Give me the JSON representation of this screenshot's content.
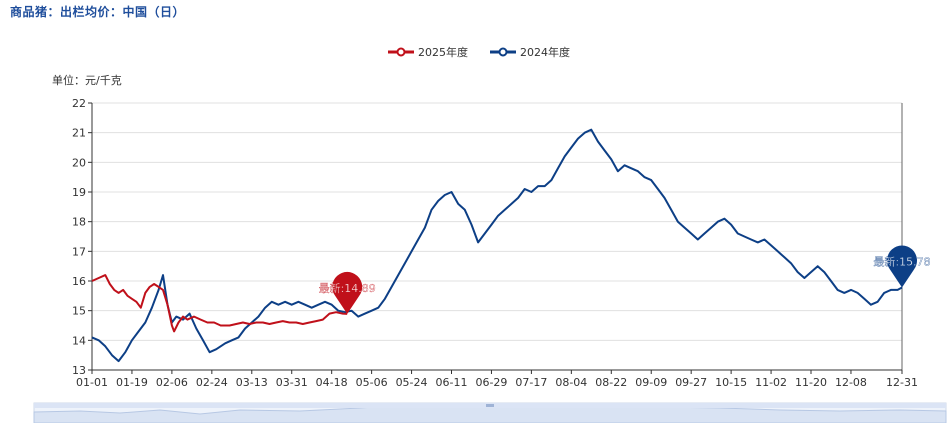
{
  "page": {
    "title": "商品猪：出栏均价：中国（日）"
  },
  "colors": {
    "series_2025": "#c0101a",
    "series_2024": "#0d3f86",
    "axis": "#333333",
    "grid": "#e0e0e0",
    "title": "#1f4e9c"
  },
  "chart_data": {
    "type": "line",
    "unit_label": "单位：元/千克",
    "ylim": [
      13,
      22
    ],
    "y_ticks": [
      13,
      14,
      15,
      16,
      17,
      18,
      19,
      20,
      21,
      22
    ],
    "grid": true,
    "legend_position": "top-center",
    "x_ticks": [
      "01-01",
      "01-19",
      "02-06",
      "02-24",
      "03-13",
      "03-31",
      "04-18",
      "05-06",
      "05-24",
      "06-11",
      "06-29",
      "07-17",
      "08-04",
      "08-22",
      "09-09",
      "09-27",
      "10-15",
      "11-02",
      "11-20",
      "12-08",
      "12-31"
    ],
    "series": [
      {
        "name": "2025年度",
        "color_key": "series_2025",
        "latest_label": "最新:14.89",
        "points": [
          [
            "01-01",
            16.0
          ],
          [
            "01-04",
            16.1
          ],
          [
            "01-07",
            16.2
          ],
          [
            "01-09",
            15.9
          ],
          [
            "01-11",
            15.7
          ],
          [
            "01-13",
            15.6
          ],
          [
            "01-15",
            15.7
          ],
          [
            "01-17",
            15.5
          ],
          [
            "01-19",
            15.4
          ],
          [
            "01-21",
            15.3
          ],
          [
            "01-23",
            15.1
          ],
          [
            "01-25",
            15.6
          ],
          [
            "01-27",
            15.8
          ],
          [
            "01-29",
            15.9
          ],
          [
            "01-31",
            15.8
          ],
          [
            "02-02",
            15.7
          ],
          [
            "02-04",
            15.2
          ],
          [
            "02-06",
            14.5
          ],
          [
            "02-07",
            14.3
          ],
          [
            "02-09",
            14.6
          ],
          [
            "02-11",
            14.8
          ],
          [
            "02-13",
            14.7
          ],
          [
            "02-16",
            14.8
          ],
          [
            "02-19",
            14.7
          ],
          [
            "02-22",
            14.6
          ],
          [
            "02-25",
            14.6
          ],
          [
            "02-28",
            14.5
          ],
          [
            "03-03",
            14.5
          ],
          [
            "03-06",
            14.55
          ],
          [
            "03-09",
            14.6
          ],
          [
            "03-12",
            14.55
          ],
          [
            "03-15",
            14.6
          ],
          [
            "03-18",
            14.6
          ],
          [
            "03-21",
            14.55
          ],
          [
            "03-24",
            14.6
          ],
          [
            "03-27",
            14.65
          ],
          [
            "03-30",
            14.6
          ],
          [
            "04-02",
            14.6
          ],
          [
            "04-05",
            14.55
          ],
          [
            "04-08",
            14.6
          ],
          [
            "04-11",
            14.65
          ],
          [
            "04-14",
            14.7
          ],
          [
            "04-17",
            14.9
          ],
          [
            "04-20",
            14.95
          ],
          [
            "04-23",
            14.9
          ],
          [
            "04-25",
            14.89
          ]
        ]
      },
      {
        "name": "2024年度",
        "color_key": "series_2024",
        "latest_label": "最新:15.78",
        "points": [
          [
            "01-01",
            14.1
          ],
          [
            "01-04",
            14.0
          ],
          [
            "01-07",
            13.8
          ],
          [
            "01-10",
            13.5
          ],
          [
            "01-13",
            13.3
          ],
          [
            "01-16",
            13.6
          ],
          [
            "01-19",
            14.0
          ],
          [
            "01-22",
            14.3
          ],
          [
            "01-25",
            14.6
          ],
          [
            "01-28",
            15.1
          ],
          [
            "01-31",
            15.7
          ],
          [
            "02-02",
            16.2
          ],
          [
            "02-04",
            15.2
          ],
          [
            "02-06",
            14.6
          ],
          [
            "02-08",
            14.8
          ],
          [
            "02-11",
            14.7
          ],
          [
            "02-14",
            14.9
          ],
          [
            "02-17",
            14.4
          ],
          [
            "02-20",
            14.0
          ],
          [
            "02-23",
            13.6
          ],
          [
            "02-26",
            13.7
          ],
          [
            "03-01",
            13.9
          ],
          [
            "03-04",
            14.0
          ],
          [
            "03-07",
            14.1
          ],
          [
            "03-10",
            14.4
          ],
          [
            "03-13",
            14.6
          ],
          [
            "03-16",
            14.8
          ],
          [
            "03-19",
            15.1
          ],
          [
            "03-22",
            15.3
          ],
          [
            "03-25",
            15.2
          ],
          [
            "03-28",
            15.3
          ],
          [
            "03-31",
            15.2
          ],
          [
            "04-03",
            15.3
          ],
          [
            "04-06",
            15.2
          ],
          [
            "04-09",
            15.1
          ],
          [
            "04-12",
            15.2
          ],
          [
            "04-15",
            15.3
          ],
          [
            "04-18",
            15.2
          ],
          [
            "04-21",
            15.0
          ],
          [
            "04-24",
            14.95
          ],
          [
            "04-27",
            15.0
          ],
          [
            "04-30",
            14.8
          ],
          [
            "05-03",
            14.9
          ],
          [
            "05-06",
            15.0
          ],
          [
            "05-09",
            15.1
          ],
          [
            "05-12",
            15.4
          ],
          [
            "05-15",
            15.8
          ],
          [
            "05-18",
            16.2
          ],
          [
            "05-21",
            16.6
          ],
          [
            "05-24",
            17.0
          ],
          [
            "05-27",
            17.4
          ],
          [
            "05-30",
            17.8
          ],
          [
            "06-02",
            18.4
          ],
          [
            "06-05",
            18.7
          ],
          [
            "06-08",
            18.9
          ],
          [
            "06-11",
            19.0
          ],
          [
            "06-14",
            18.6
          ],
          [
            "06-17",
            18.4
          ],
          [
            "06-20",
            17.9
          ],
          [
            "06-23",
            17.3
          ],
          [
            "06-26",
            17.6
          ],
          [
            "06-29",
            17.9
          ],
          [
            "07-02",
            18.2
          ],
          [
            "07-05",
            18.4
          ],
          [
            "07-08",
            18.6
          ],
          [
            "07-11",
            18.8
          ],
          [
            "07-14",
            19.1
          ],
          [
            "07-17",
            19.0
          ],
          [
            "07-20",
            19.2
          ],
          [
            "07-23",
            19.2
          ],
          [
            "07-26",
            19.4
          ],
          [
            "07-29",
            19.8
          ],
          [
            "08-01",
            20.2
          ],
          [
            "08-04",
            20.5
          ],
          [
            "08-07",
            20.8
          ],
          [
            "08-10",
            21.0
          ],
          [
            "08-13",
            21.1
          ],
          [
            "08-16",
            20.7
          ],
          [
            "08-19",
            20.4
          ],
          [
            "08-22",
            20.1
          ],
          [
            "08-25",
            19.7
          ],
          [
            "08-28",
            19.9
          ],
          [
            "08-31",
            19.8
          ],
          [
            "09-03",
            19.7
          ],
          [
            "09-06",
            19.5
          ],
          [
            "09-09",
            19.4
          ],
          [
            "09-12",
            19.1
          ],
          [
            "09-15",
            18.8
          ],
          [
            "09-18",
            18.4
          ],
          [
            "09-21",
            18.0
          ],
          [
            "09-24",
            17.8
          ],
          [
            "09-27",
            17.6
          ],
          [
            "09-30",
            17.4
          ],
          [
            "10-03",
            17.6
          ],
          [
            "10-06",
            17.8
          ],
          [
            "10-09",
            18.0
          ],
          [
            "10-12",
            18.1
          ],
          [
            "10-15",
            17.9
          ],
          [
            "10-18",
            17.6
          ],
          [
            "10-21",
            17.5
          ],
          [
            "10-24",
            17.4
          ],
          [
            "10-27",
            17.3
          ],
          [
            "10-30",
            17.4
          ],
          [
            "11-02",
            17.2
          ],
          [
            "11-05",
            17.0
          ],
          [
            "11-08",
            16.8
          ],
          [
            "11-11",
            16.6
          ],
          [
            "11-14",
            16.3
          ],
          [
            "11-17",
            16.1
          ],
          [
            "11-20",
            16.3
          ],
          [
            "11-23",
            16.5
          ],
          [
            "11-26",
            16.3
          ],
          [
            "11-29",
            16.0
          ],
          [
            "12-02",
            15.7
          ],
          [
            "12-05",
            15.6
          ],
          [
            "12-08",
            15.7
          ],
          [
            "12-11",
            15.6
          ],
          [
            "12-14",
            15.4
          ],
          [
            "12-17",
            15.2
          ],
          [
            "12-20",
            15.3
          ],
          [
            "12-23",
            15.6
          ],
          [
            "12-26",
            15.7
          ],
          [
            "12-29",
            15.7
          ],
          [
            "12-31",
            15.78
          ]
        ]
      }
    ]
  }
}
